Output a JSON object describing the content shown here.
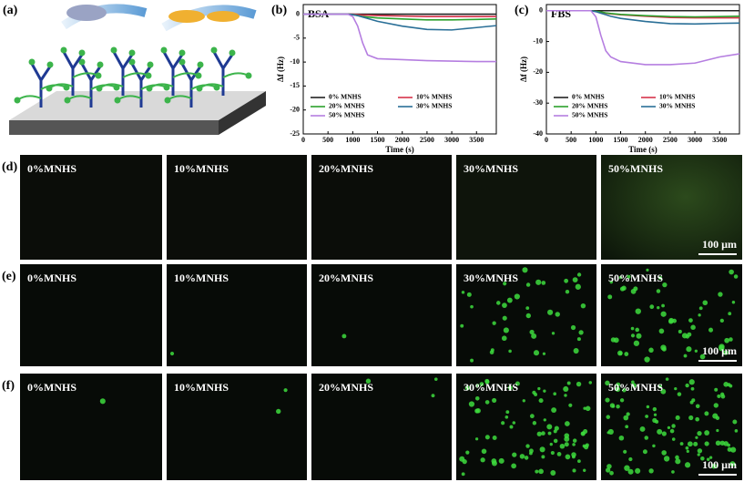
{
  "panel_labels": [
    "(a)",
    "(b)",
    "(c)"
  ],
  "chart_data": [
    {
      "type": "line",
      "title": "BSA",
      "x_label": "Time (s)",
      "y_label": "Δf (Hz)",
      "x": [
        0,
        500,
        900,
        1000,
        1100,
        1200,
        1300,
        1500,
        2000,
        2500,
        3000,
        3500,
        3900
      ],
      "xlim": [
        0,
        3900
      ],
      "xticks": [
        0,
        500,
        1000,
        1500,
        2000,
        2500,
        3000,
        3500
      ],
      "ylim": [
        -25,
        2
      ],
      "yticks": [
        0,
        -5,
        -10,
        -15,
        -20,
        -25
      ],
      "legend": "lower",
      "legend_columns": 2,
      "series": [
        {
          "name": "0% MNHS",
          "color": "#222222",
          "values": [
            0,
            0,
            0,
            0,
            0,
            0,
            0,
            0,
            0,
            0,
            0,
            0,
            0
          ]
        },
        {
          "name": "10% MNHS",
          "color": "#d6334a",
          "values": [
            0,
            0,
            0,
            0,
            -0.1,
            -0.2,
            -0.2,
            -0.3,
            -0.4,
            -0.5,
            -0.5,
            -0.5,
            -0.5
          ]
        },
        {
          "name": "20% MNHS",
          "color": "#2ca02c",
          "values": [
            0,
            0,
            0,
            -0.1,
            -0.3,
            -0.5,
            -0.6,
            -0.8,
            -1.0,
            -1.2,
            -1.2,
            -1.1,
            -1.0
          ]
        },
        {
          "name": "30% MNHS",
          "color": "#2a6f97",
          "values": [
            0,
            0,
            0,
            -0.1,
            -0.3,
            -0.6,
            -0.9,
            -1.5,
            -2.5,
            -3.2,
            -3.3,
            -2.8,
            -2.4
          ]
        },
        {
          "name": "50% MNHS",
          "color": "#b57ee0",
          "values": [
            0,
            0,
            0,
            -0.5,
            -2.5,
            -6,
            -8.5,
            -9.3,
            -9.5,
            -9.7,
            -9.8,
            -9.9,
            -9.9
          ]
        }
      ]
    },
    {
      "type": "line",
      "title": "FBS",
      "x_label": "Time (s)",
      "y_label": "Δf (Hz)",
      "x": [
        0,
        500,
        900,
        1000,
        1100,
        1200,
        1300,
        1500,
        2000,
        2500,
        3000,
        3500,
        3900
      ],
      "xlim": [
        0,
        3900
      ],
      "xticks": [
        0,
        500,
        1000,
        1500,
        2000,
        2500,
        3000,
        3500
      ],
      "ylim": [
        -40,
        2
      ],
      "yticks": [
        0,
        -10,
        -20,
        -30,
        -40
      ],
      "legend": "lower",
      "legend_columns": 2,
      "series": [
        {
          "name": "0% MNHS",
          "color": "#222222",
          "values": [
            0,
            0,
            0,
            0,
            0,
            0,
            0,
            0,
            0,
            0,
            0,
            0,
            0
          ]
        },
        {
          "name": "10% MNHS",
          "color": "#d6334a",
          "values": [
            0,
            0,
            0,
            -0.2,
            -0.5,
            -0.8,
            -1,
            -1.3,
            -1.8,
            -2.2,
            -2.3,
            -2.3,
            -2.3
          ]
        },
        {
          "name": "20% MNHS",
          "color": "#2ca02c",
          "values": [
            0,
            0,
            0,
            -0.2,
            -0.4,
            -0.7,
            -0.9,
            -1.2,
            -1.6,
            -1.9,
            -2.0,
            -1.9,
            -1.8
          ]
        },
        {
          "name": "30% MNHS",
          "color": "#2a6f97",
          "values": [
            0,
            0,
            0,
            -0.3,
            -0.8,
            -1.3,
            -1.8,
            -2.5,
            -3.5,
            -4.2,
            -4.3,
            -4.1,
            -4.0
          ]
        },
        {
          "name": "50% MNHS",
          "color": "#b57ee0",
          "values": [
            0,
            0,
            0,
            -2,
            -8,
            -13,
            -15,
            -16.5,
            -17.5,
            -17.5,
            -17,
            -15,
            -14
          ]
        }
      ]
    }
  ],
  "image_rows": [
    {
      "label": "(d)",
      "cells": [
        "0%MNHS",
        "10%MNHS",
        "20%MNHS",
        "30%MNHS",
        "50%MNHS"
      ],
      "scale_bar": "100 µm"
    },
    {
      "label": "(e)",
      "cells": [
        "0%MNHS",
        "10%MNHS",
        "20%MNHS",
        "30%MNHS",
        "50%MNHS"
      ],
      "scale_bar": "100 µm"
    },
    {
      "label": "(f)",
      "cells": [
        "0%MNHS",
        "10%MNHS",
        "20%MNHS",
        "30%MNHS",
        "50%MNHS"
      ],
      "scale_bar": "100 µm"
    }
  ]
}
